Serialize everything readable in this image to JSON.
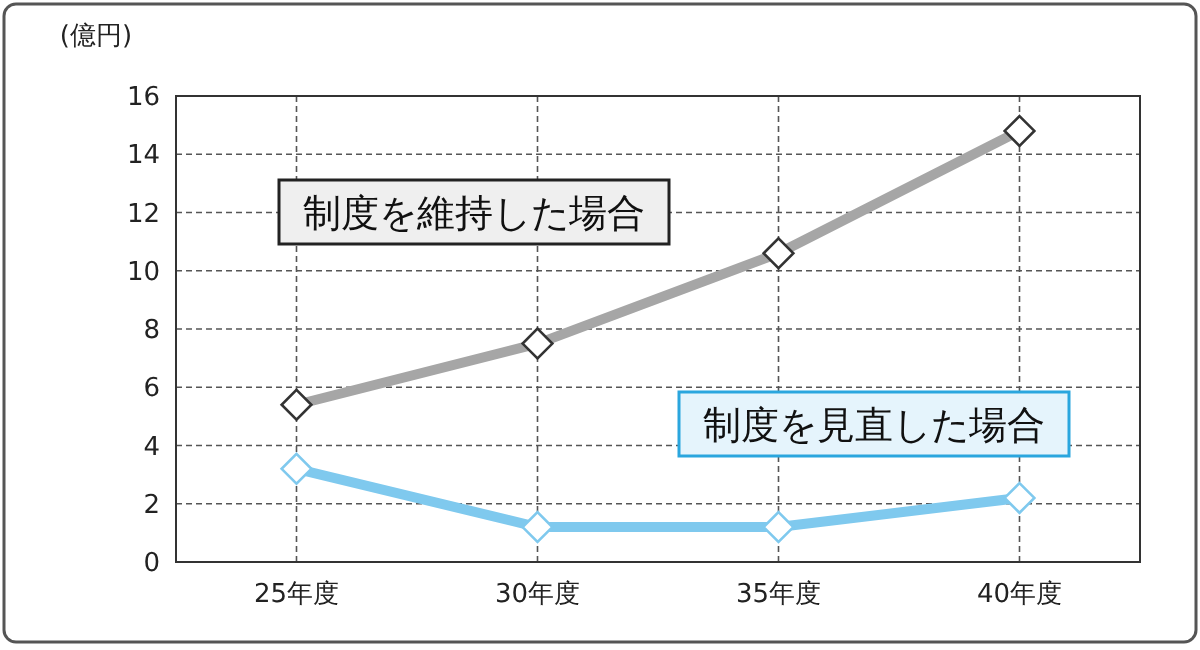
{
  "chart_data": {
    "type": "line",
    "ylabel": "(億円)",
    "categories": [
      "25年度",
      "30年度",
      "35年度",
      "40年度"
    ],
    "ylim": [
      0,
      16
    ],
    "yticks": [
      0,
      2,
      4,
      6,
      8,
      10,
      12,
      14,
      16
    ],
    "grid": true,
    "marker": "diamond",
    "line_style": "solid",
    "series": [
      {
        "name": "制度を維持した場合",
        "color": "#a6a6a6",
        "values": [
          5.4,
          7.5,
          10.6,
          14.8
        ]
      },
      {
        "name": "制度を見直した場合",
        "color": "#7fc9ee",
        "values": [
          3.2,
          1.2,
          1.2,
          2.2
        ]
      }
    ]
  }
}
